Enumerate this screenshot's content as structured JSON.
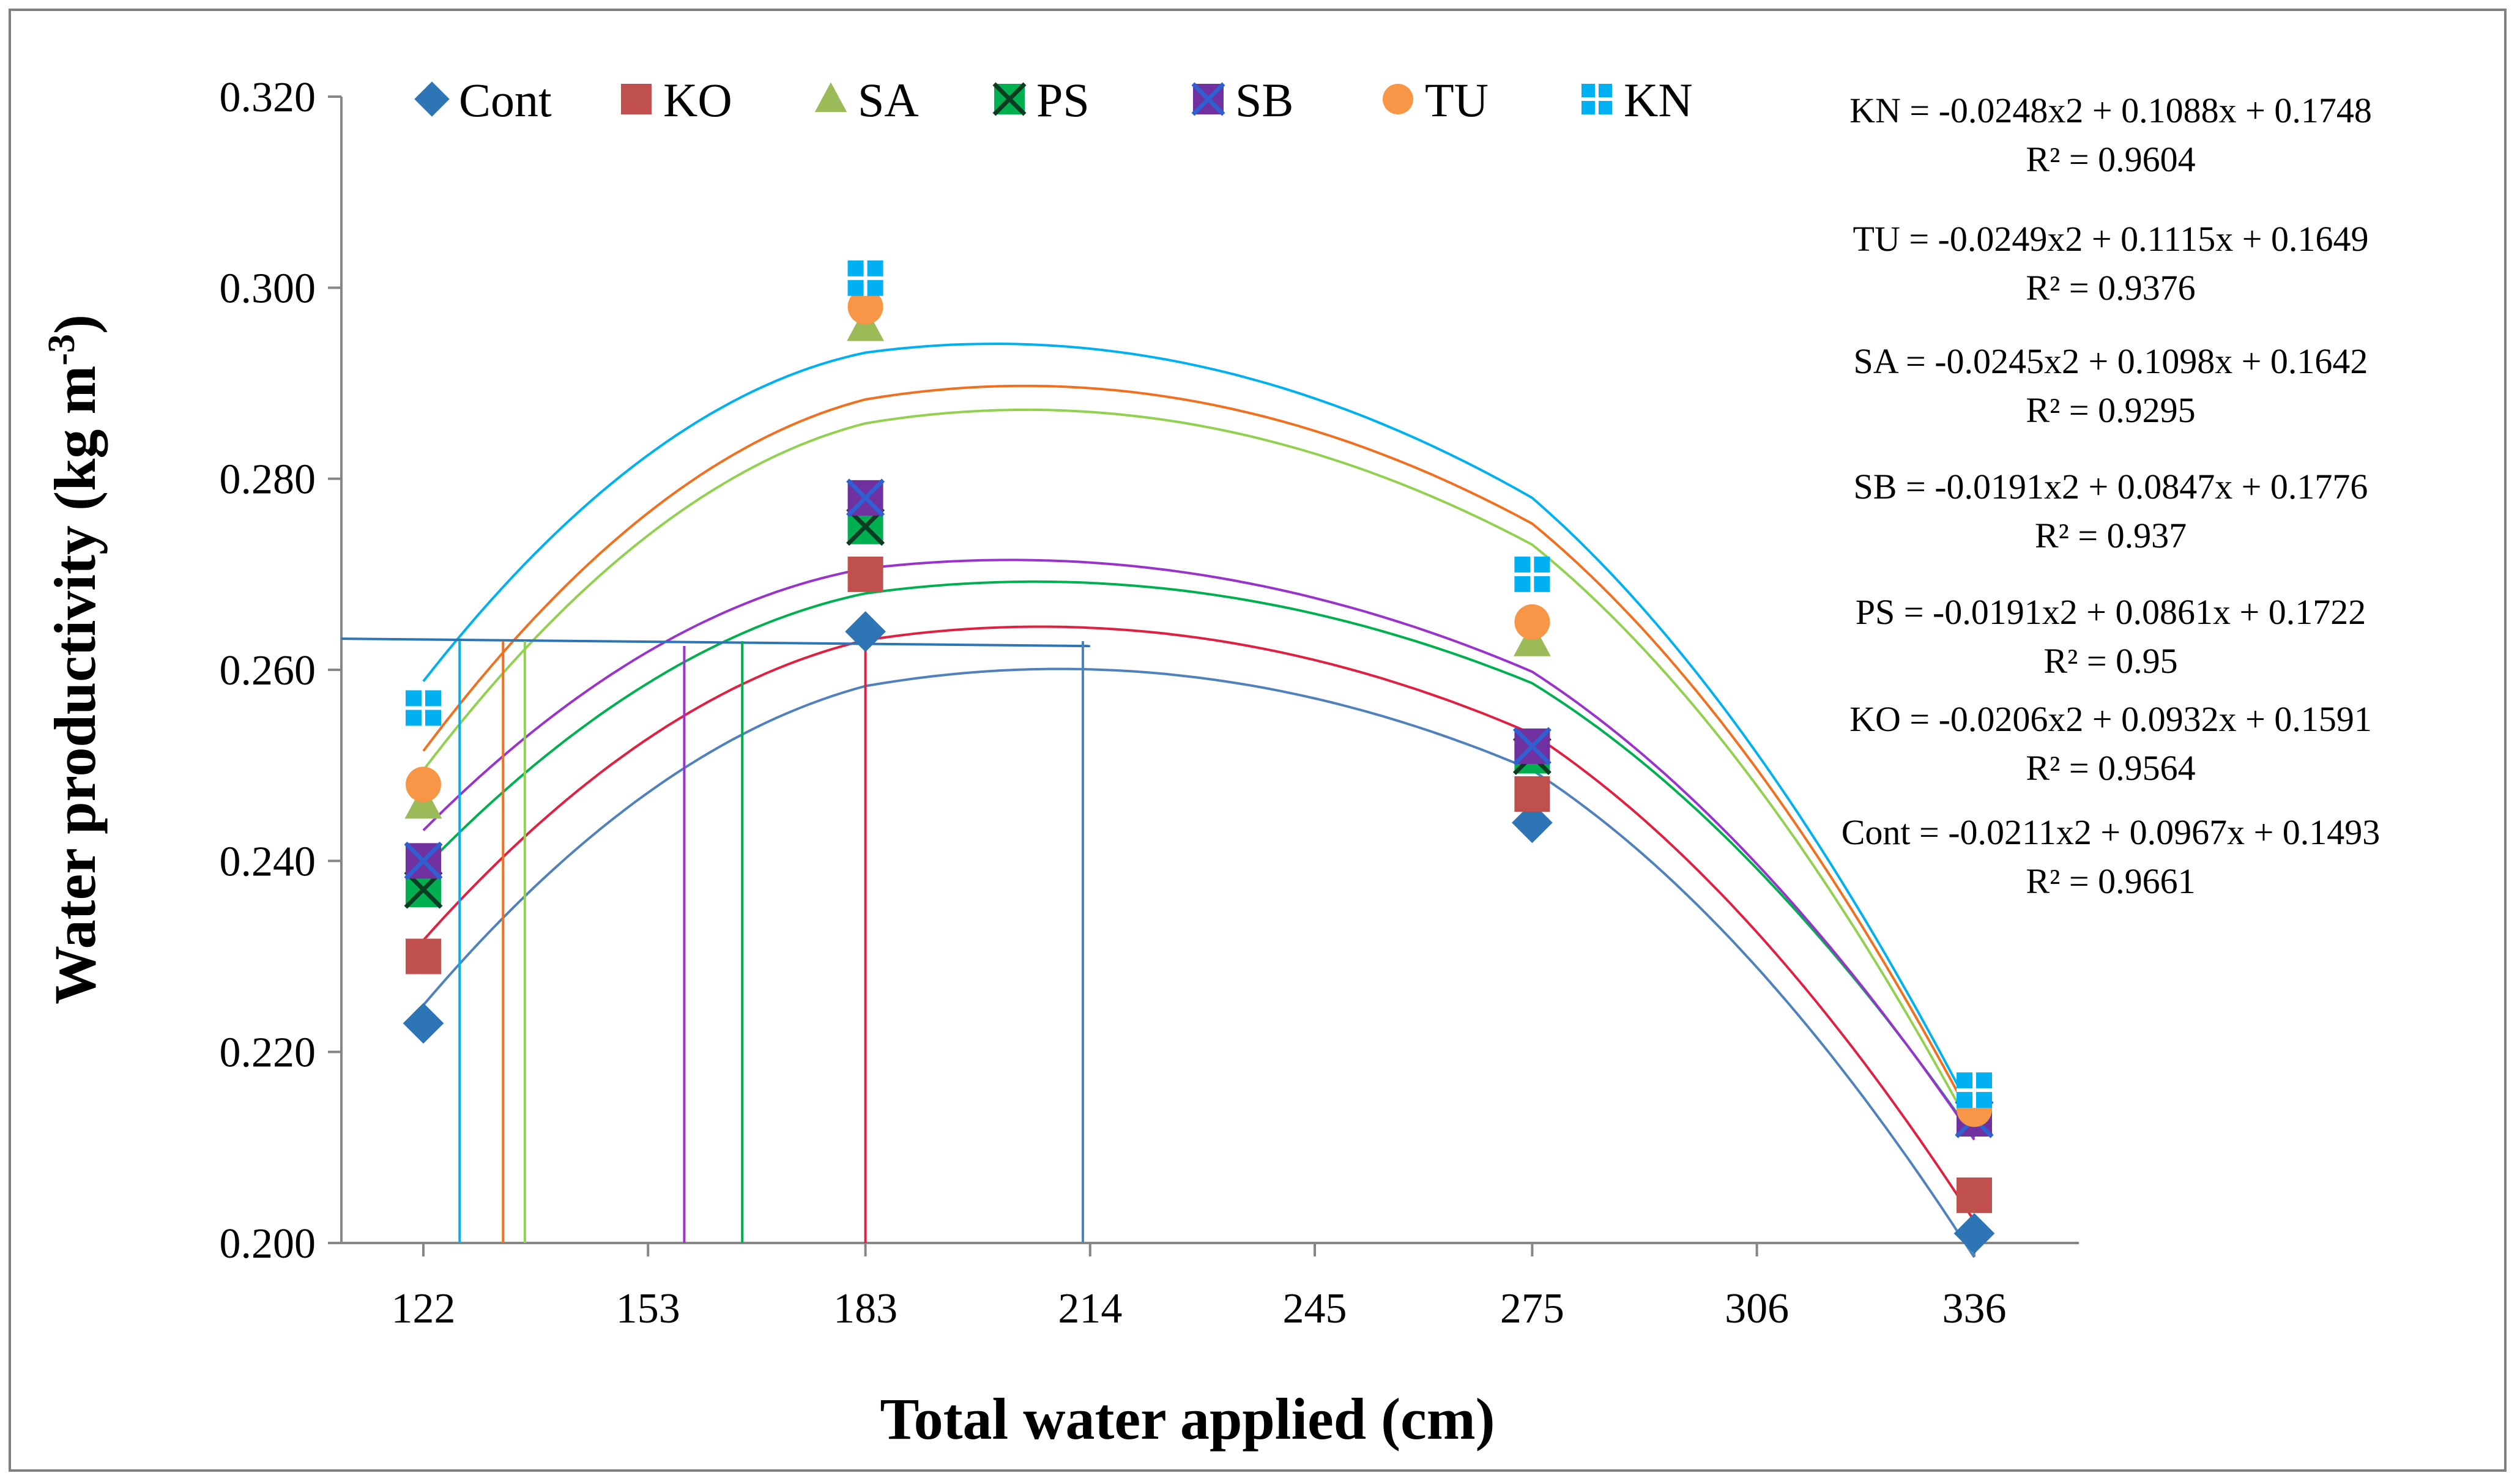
{
  "chart_data": {
    "type": "scatter",
    "xlabel": "Total water applied (cm)",
    "ylabel": "Water productivity (kg m",
    "ylabel_superscript": "-3",
    "ylabel_suffix": ")",
    "ylim": [
      0.2,
      0.32
    ],
    "y_ticks": [
      "0.200",
      "0.220",
      "0.240",
      "0.260",
      "0.280",
      "0.300",
      "0.320"
    ],
    "x_ticks": [
      "122",
      "153",
      "183",
      "214",
      "245",
      "275",
      "306",
      "336"
    ],
    "categories": [
      "122",
      "183",
      "275",
      "336"
    ],
    "legend_position": "top",
    "grid": false,
    "series": [
      {
        "name": "Cont",
        "marker": "diamond",
        "color": "#2e75b6",
        "curve_color": "#4f81bd",
        "values": [
          0.223,
          0.264,
          0.244,
          0.201
        ],
        "coeffs": [
          -0.0211,
          0.0967,
          0.1493
        ]
      },
      {
        "name": "KO",
        "marker": "square",
        "color": "#c0504d",
        "curve_color": "#e02040",
        "values": [
          0.23,
          0.27,
          0.247,
          0.205
        ],
        "coeffs": [
          -0.0206,
          0.0932,
          0.1591
        ]
      },
      {
        "name": "SA",
        "marker": "triangle",
        "color": "#9bbb59",
        "curve_color": "#92d050",
        "values": [
          0.246,
          0.296,
          0.263,
          0.213
        ],
        "coeffs": [
          -0.0245,
          0.1098,
          0.1642
        ]
      },
      {
        "name": "PS",
        "marker": "square-x",
        "color": "#00b050",
        "curve_color": "#00b050",
        "values": [
          0.237,
          0.275,
          0.251,
          0.213
        ],
        "coeffs": [
          -0.0191,
          0.0861,
          0.1722
        ]
      },
      {
        "name": "SB",
        "marker": "square-x",
        "color": "#7030a0",
        "curve_color": "#9933cc",
        "values": [
          0.24,
          0.278,
          0.252,
          0.213
        ],
        "coeffs": [
          -0.0191,
          0.0847,
          0.1776
        ]
      },
      {
        "name": "TU",
        "marker": "circle",
        "color": "#f79646",
        "curve_color": "#f07020",
        "values": [
          0.248,
          0.298,
          0.265,
          0.214
        ],
        "coeffs": [
          -0.0249,
          0.1115,
          0.1649
        ]
      },
      {
        "name": "KN",
        "marker": "square-plus",
        "color": "#00b0f0",
        "curve_color": "#00b0f0",
        "values": [
          0.256,
          0.301,
          0.27,
          0.216
        ],
        "coeffs": [
          -0.0248,
          0.1088,
          0.1748
        ]
      }
    ],
    "equations": [
      {
        "series": "KN",
        "equation": "KN = -0.0248x2 + 0.1088x + 0.1748",
        "r2": "R² = 0.9604"
      },
      {
        "series": "TU",
        "equation": "TU = -0.0249x2 + 0.1115x + 0.1649",
        "r2": "R² = 0.9376"
      },
      {
        "series": "SA",
        "equation": "SA = -0.0245x2 + 0.1098x + 0.1642",
        "r2": "R² = 0.9295"
      },
      {
        "series": "SB",
        "equation": "SB = -0.0191x2 + 0.0847x + 0.1776",
        "r2": "R² = 0.937"
      },
      {
        "series": "PS",
        "equation": "PS = -0.0191x2 + 0.0861x + 0.1722",
        "r2": "R² = 0.95"
      },
      {
        "series": "KO",
        "equation": "KO = -0.0206x2 + 0.0932x + 0.1591",
        "r2": "R² = 0.9564"
      },
      {
        "series": "Cont",
        "equation": "Cont = -0.0211x2 + 0.0967x + 0.1493",
        "r2": "R² = 0.9661"
      }
    ],
    "reference_line_y": 0.263,
    "drop_lines": [
      {
        "series": "KN",
        "x": 127
      },
      {
        "series": "TU",
        "x": 133
      },
      {
        "series": "SA",
        "x": 136
      },
      {
        "series": "SB",
        "x": 158
      },
      {
        "series": "PS",
        "x": 166
      },
      {
        "series": "KO",
        "x": 183
      },
      {
        "series": "Cont",
        "x": 213
      }
    ]
  }
}
